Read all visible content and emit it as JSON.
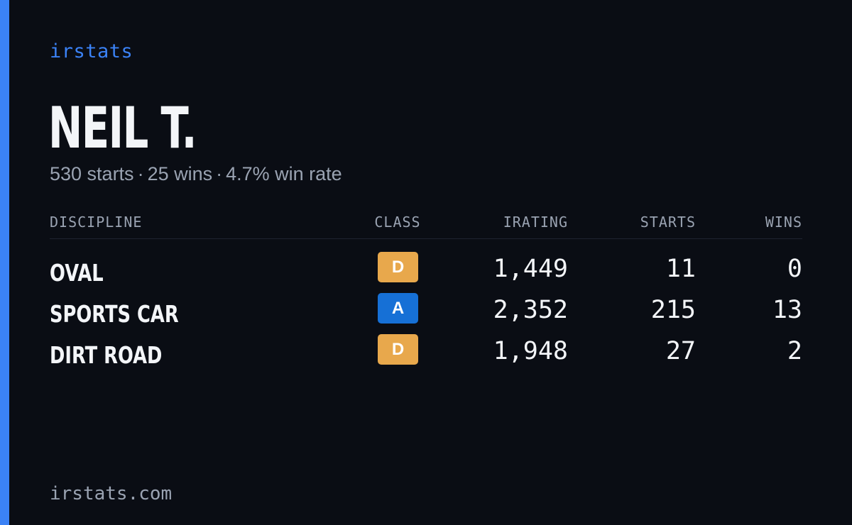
{
  "brand": "irstats",
  "driver": {
    "name": "NEIL T.",
    "starts": "530 starts",
    "wins": "25 wins",
    "win_rate": "4.7% win rate",
    "separator": "·"
  },
  "table": {
    "headers": {
      "discipline": "DISCIPLINE",
      "class": "CLASS",
      "irating": "IRATING",
      "starts": "STARTS",
      "wins": "WINS"
    },
    "rows": [
      {
        "discipline": "OVAL",
        "class": "D",
        "class_color": "#e8a84c",
        "irating": "1,449",
        "starts": "11",
        "wins": "0"
      },
      {
        "discipline": "SPORTS CAR",
        "class": "A",
        "class_color": "#1670d6",
        "irating": "2,352",
        "starts": "215",
        "wins": "13"
      },
      {
        "discipline": "DIRT ROAD",
        "class": "D",
        "class_color": "#e8a84c",
        "irating": "1,948",
        "starts": "27",
        "wins": "2"
      }
    ]
  },
  "footer": "irstats.com",
  "colors": {
    "accent": "#3b82f6",
    "background": "#0a0d14",
    "text_primary": "#f3f5f8",
    "text_muted": "#9aa3b2"
  }
}
